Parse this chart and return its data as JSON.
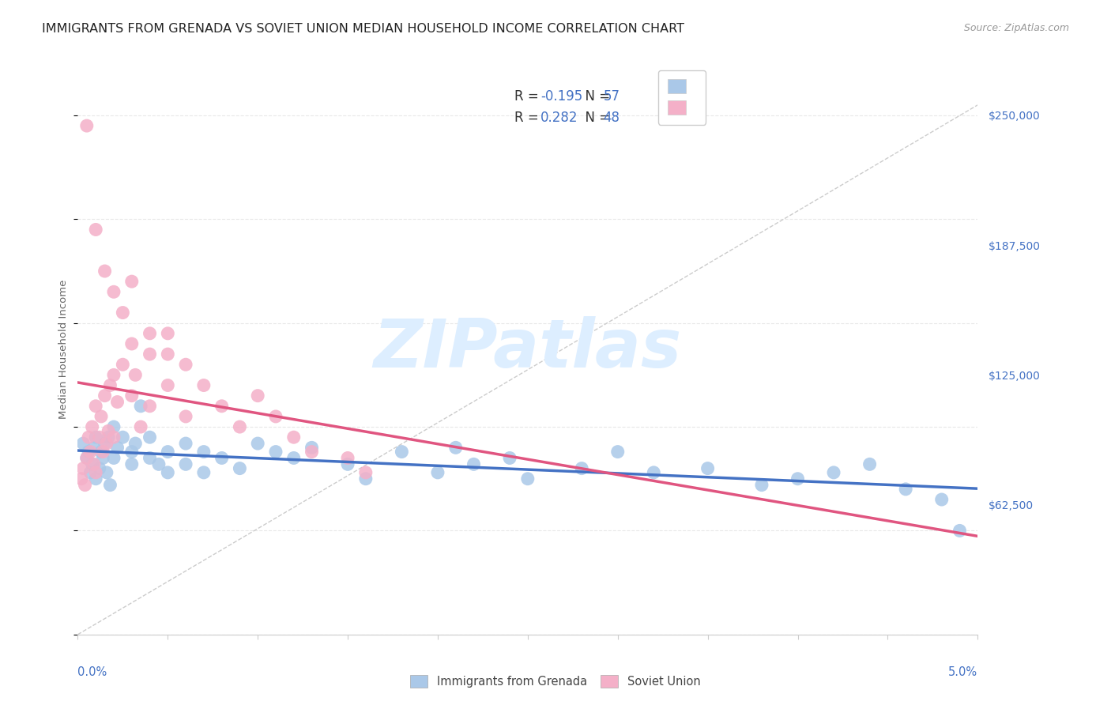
{
  "title": "IMMIGRANTS FROM GRENADA VS SOVIET UNION MEDIAN HOUSEHOLD INCOME CORRELATION CHART",
  "source": "Source: ZipAtlas.com",
  "ylabel": "Median Household Income",
  "xlim": [
    0.0,
    0.05
  ],
  "ylim": [
    0,
    275000
  ],
  "ytick_positions": [
    0,
    62500,
    125000,
    187500,
    250000
  ],
  "ytick_labels": [
    "",
    "$62,500",
    "$125,000",
    "$187,500",
    "$250,000"
  ],
  "xtick_positions": [
    0.0,
    0.005,
    0.01,
    0.015,
    0.02,
    0.025,
    0.03,
    0.035,
    0.04,
    0.045,
    0.05
  ],
  "grenada_R": -0.195,
  "grenada_N": 57,
  "soviet_R": 0.282,
  "soviet_N": 48,
  "grenada_dot_color": "#aac8e8",
  "soviet_dot_color": "#f4b0c8",
  "grenada_line_color": "#4472c4",
  "soviet_line_color": "#e05580",
  "diag_line_color": "#cccccc",
  "watermark_color": "#ddeeff",
  "watermark_text": "ZIPatlas",
  "grid_color": "#e8e8e8",
  "title_color": "#222222",
  "axis_label_color": "#4472c4",
  "ylabel_color": "#666666",
  "background": "#ffffff",
  "legend_label1": "Immigrants from Grenada",
  "legend_label2": "Soviet Union",
  "title_fontsize": 11.5,
  "source_fontsize": 9,
  "grenada_x": [
    0.0003,
    0.0005,
    0.0006,
    0.0007,
    0.0008,
    0.0009,
    0.001,
    0.001,
    0.0012,
    0.0013,
    0.0014,
    0.0015,
    0.0016,
    0.0017,
    0.0018,
    0.002,
    0.002,
    0.0022,
    0.0025,
    0.003,
    0.003,
    0.0032,
    0.0035,
    0.004,
    0.004,
    0.0045,
    0.005,
    0.005,
    0.006,
    0.006,
    0.007,
    0.007,
    0.008,
    0.009,
    0.01,
    0.011,
    0.012,
    0.013,
    0.015,
    0.016,
    0.018,
    0.02,
    0.021,
    0.022,
    0.024,
    0.025,
    0.028,
    0.03,
    0.032,
    0.035,
    0.038,
    0.04,
    0.042,
    0.044,
    0.046,
    0.048,
    0.049
  ],
  "grenada_y": [
    92000,
    85000,
    88000,
    78000,
    82000,
    90000,
    95000,
    75000,
    80000,
    88000,
    85000,
    92000,
    78000,
    95000,
    72000,
    100000,
    85000,
    90000,
    95000,
    88000,
    82000,
    92000,
    110000,
    85000,
    95000,
    82000,
    88000,
    78000,
    82000,
    92000,
    88000,
    78000,
    85000,
    80000,
    92000,
    88000,
    85000,
    90000,
    82000,
    75000,
    88000,
    78000,
    90000,
    82000,
    85000,
    75000,
    80000,
    88000,
    78000,
    80000,
    72000,
    75000,
    78000,
    82000,
    70000,
    65000,
    50000
  ],
  "soviet_x": [
    0.0002,
    0.0003,
    0.0004,
    0.0005,
    0.0006,
    0.0007,
    0.0008,
    0.0009,
    0.001,
    0.001,
    0.0012,
    0.0013,
    0.0014,
    0.0015,
    0.0016,
    0.0017,
    0.0018,
    0.002,
    0.002,
    0.0022,
    0.0025,
    0.003,
    0.003,
    0.0032,
    0.0035,
    0.004,
    0.004,
    0.005,
    0.005,
    0.006,
    0.006,
    0.007,
    0.008,
    0.009,
    0.01,
    0.011,
    0.012,
    0.013,
    0.015,
    0.016,
    0.0005,
    0.001,
    0.0015,
    0.002,
    0.0025,
    0.003,
    0.004,
    0.005
  ],
  "soviet_y": [
    75000,
    80000,
    72000,
    85000,
    95000,
    88000,
    100000,
    82000,
    110000,
    78000,
    95000,
    105000,
    88000,
    115000,
    92000,
    98000,
    120000,
    125000,
    95000,
    112000,
    130000,
    140000,
    115000,
    125000,
    100000,
    135000,
    110000,
    145000,
    120000,
    130000,
    105000,
    120000,
    110000,
    100000,
    115000,
    105000,
    95000,
    88000,
    85000,
    78000,
    245000,
    195000,
    175000,
    165000,
    155000,
    170000,
    145000,
    135000
  ]
}
